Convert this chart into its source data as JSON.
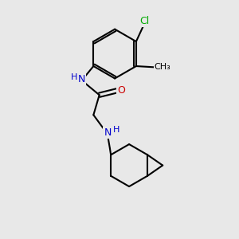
{
  "background_color": "#e8e8e8",
  "bond_color": "#000000",
  "line_width": 1.5,
  "atom_colors": {
    "N": "#0000cc",
    "O": "#cc0000",
    "Cl": "#00aa00",
    "C": "#000000",
    "H": "#000000"
  },
  "font_size": 9,
  "fig_size": [
    3.0,
    3.0
  ],
  "dpi": 100
}
